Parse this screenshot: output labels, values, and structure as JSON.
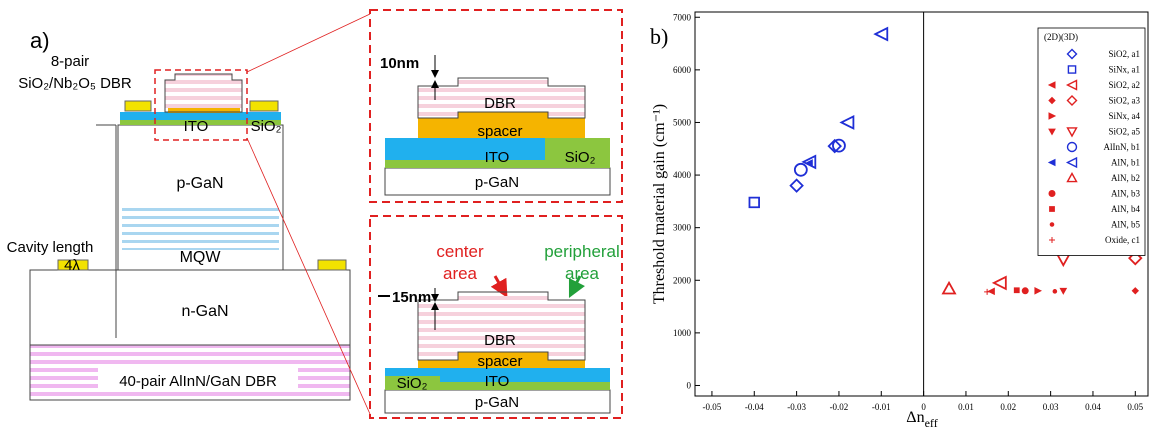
{
  "diagram": {
    "label": "a)",
    "main": {
      "top_dbr_pairs": "8-pair",
      "top_dbr": "SiO₂/Nb₂O₅ DBR",
      "ito": "ITO",
      "sio2": "SiO₂",
      "p_gan": "p-GaN",
      "cavity": "Cavity length",
      "cavity_value": "4λ",
      "mqw": "MQW",
      "n_gan": "n-GaN",
      "bottom_dbr": "40-pair AlInN/GaN DBR"
    },
    "inset_top": {
      "thickness": "10nm",
      "dbr": "DBR",
      "spacer": "spacer",
      "ito": "ITO",
      "sio2": "SiO₂",
      "p_gan": "p-GaN"
    },
    "inset_bottom": {
      "thickness": "15nm",
      "center": "center",
      "center_area": "area",
      "peripheral": "peripheral",
      "peripheral_area": "area",
      "dbr": "DBR",
      "spacer": "spacer",
      "ito": "ITO",
      "sio2": "SiO₂",
      "p_gan": "p-GaN"
    }
  },
  "chart_data": {
    "type": "scatter",
    "panel_label": "b)",
    "ylabel": "Threshold material gain (cm⁻¹)",
    "xlabel": "Δn",
    "xlabel_sub": "eff",
    "legend_title": "(2D)(3D)",
    "legend_position": "upper right",
    "xlim": [
      -0.054,
      0.053
    ],
    "ylim": [
      -200,
      7100
    ],
    "xticks": [
      -0.05,
      -0.04,
      -0.03,
      -0.02,
      -0.01,
      0,
      0.01,
      0.02,
      0.03,
      0.04,
      0.05
    ],
    "yticks": [
      0,
      1000,
      2000,
      3000,
      4000,
      5000,
      6000,
      7000
    ],
    "zero_line": true,
    "series": [
      {
        "name": "SiO2, a1",
        "color": "#1f2fd6",
        "marker": "diamond",
        "x": [
          -0.03,
          -0.021
        ],
        "values": [
          3800,
          4550
        ]
      },
      {
        "name": "SiNx, a1",
        "color": "#1f2fd6",
        "marker": "square",
        "x": [
          -0.04
        ],
        "values": [
          3480
        ]
      },
      {
        "name": "SiO2, a2",
        "color": "#e02020",
        "marker": "lefttri",
        "x_2d": [
          0.016
        ],
        "values_2d": [
          1790
        ],
        "x": [
          0.018
        ],
        "values": [
          1950
        ]
      },
      {
        "name": "SiO2, a3",
        "color": "#e02020",
        "marker": "diamond",
        "x_2d": [
          0.05
        ],
        "values_2d": [
          1800
        ],
        "x": [
          0.05
        ],
        "values": [
          2420
        ]
      },
      {
        "name": "SiNx, a4",
        "color": "#e02020",
        "marker": "righttri",
        "x_2d": [
          0.027
        ],
        "values_2d": [
          1800
        ]
      },
      {
        "name": "SiO2, a5",
        "color": "#e02020",
        "marker": "downtri",
        "x_2d": [
          0.033
        ],
        "values_2d": [
          1800
        ],
        "x": [
          0.033
        ],
        "values": [
          2400
        ]
      },
      {
        "name": "AlInN, b1",
        "color": "#1f2fd6",
        "marker": "circle",
        "x": [
          -0.029,
          -0.02
        ],
        "values": [
          4100,
          4560
        ]
      },
      {
        "name": "AlN, b1",
        "color": "#1f2fd6",
        "marker": "lefttri",
        "x_2d": [
          -0.027
        ],
        "values_2d": [
          4230
        ],
        "x": [
          -0.027,
          -0.018,
          -0.01
        ],
        "values": [
          4250,
          5000,
          6680
        ]
      },
      {
        "name": "AlN, b2",
        "color": "#e02020",
        "marker": "uptri",
        "x": [
          0.006
        ],
        "values": [
          1840
        ]
      },
      {
        "name": "AlN, b3",
        "color": "#e02020",
        "marker": "circle",
        "x_2d": [
          0.024
        ],
        "values_2d": [
          1800
        ]
      },
      {
        "name": "AlN, b4",
        "color": "#e02020",
        "marker": "square",
        "x_2d": [
          0.022
        ],
        "values_2d": [
          1810
        ]
      },
      {
        "name": "AlN, b5",
        "color": "#e02020",
        "marker": "dot",
        "x_2d": [
          0.031
        ],
        "values_2d": [
          1790
        ]
      },
      {
        "name": "Oxide, c1",
        "color": "#e02020",
        "marker": "plus",
        "x_2d": [
          0.015
        ],
        "values_2d": [
          1780
        ]
      }
    ]
  }
}
